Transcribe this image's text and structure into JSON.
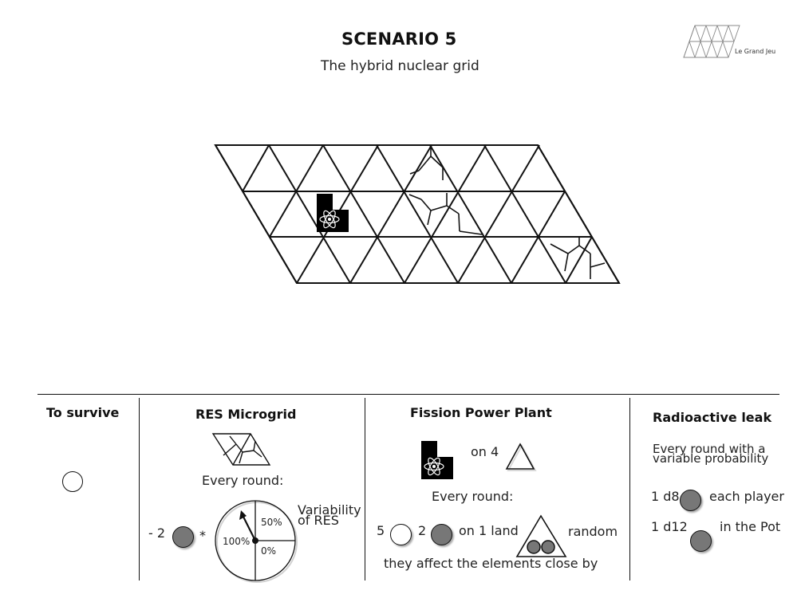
{
  "header": {
    "title": "SCENARIO 5",
    "subtitle": "The hybrid nuclear grid",
    "logo_text": "Le Grand Jeu"
  },
  "board": {
    "rows": 3,
    "columns": 8,
    "elements": [
      "fission-plant",
      "res-microgrid",
      "res-microgrid",
      "res-microgrid"
    ]
  },
  "survive": {
    "heading": "To survive"
  },
  "res": {
    "heading": "RES Microgrid",
    "every_round": "Every round:",
    "minus": "- 2",
    "times": "*",
    "variability_line1": "Variability",
    "variability_line2": "of RES",
    "dial": [
      "50%",
      "100%",
      "0%"
    ]
  },
  "fission": {
    "heading": "Fission Power Plant",
    "on_count": "on 4",
    "every_round": "Every round:",
    "white_count": "5",
    "grey_count": "2",
    "on_land": "on 1 land",
    "random": "random",
    "note": "they affect the elements close by"
  },
  "leak": {
    "heading": "Radioactive leak",
    "line1": "Every round with a",
    "line2": "variable probability",
    "die1": "1 d8",
    "target1": "each player",
    "die2": "1 d12",
    "target2": "in the Pot"
  }
}
